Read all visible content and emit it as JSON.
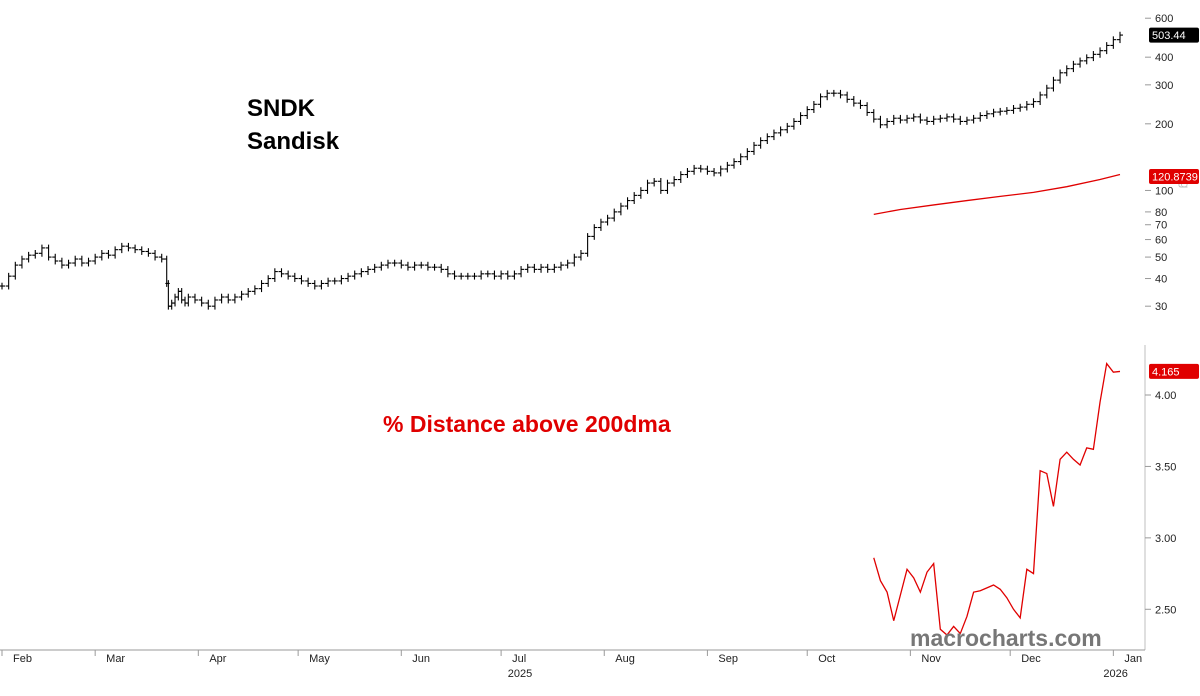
{
  "chart_data": [
    {
      "type": "ohlc",
      "title": "SNDK",
      "subtitle": "Sandisk",
      "y_scale": "log",
      "axis_unit_label": "Lg",
      "yticks": [
        30,
        40,
        50,
        60,
        70,
        80,
        100,
        200,
        300,
        400,
        600
      ],
      "ylim": [
        22,
        640
      ],
      "last_value_label": "503.44",
      "last_value_color": "#000000",
      "price_close": [
        [
          0,
          37
        ],
        [
          2,
          41
        ],
        [
          4,
          46
        ],
        [
          6,
          49
        ],
        [
          8,
          51
        ],
        [
          10,
          52
        ],
        [
          12,
          55
        ],
        [
          14,
          50
        ],
        [
          16,
          48
        ],
        [
          18,
          46
        ],
        [
          20,
          47
        ],
        [
          22,
          49
        ],
        [
          24,
          47
        ],
        [
          26,
          48
        ],
        [
          28,
          50
        ],
        [
          30,
          52
        ],
        [
          32,
          51
        ],
        [
          34,
          54
        ],
        [
          36,
          56
        ],
        [
          38,
          55
        ],
        [
          40,
          54
        ],
        [
          42,
          53
        ],
        [
          44,
          52
        ],
        [
          46,
          50
        ],
        [
          48,
          49
        ],
        [
          49.5,
          38
        ],
        [
          50,
          30
        ],
        [
          51,
          31
        ],
        [
          52,
          33
        ],
        [
          53,
          35
        ],
        [
          54,
          32
        ],
        [
          55,
          31
        ],
        [
          56,
          33
        ],
        [
          58,
          32
        ],
        [
          60,
          31
        ],
        [
          62,
          30
        ],
        [
          64,
          32
        ],
        [
          66,
          33
        ],
        [
          68,
          32
        ],
        [
          70,
          33
        ],
        [
          72,
          34
        ],
        [
          74,
          35
        ],
        [
          76,
          36
        ],
        [
          78,
          38
        ],
        [
          80,
          40
        ],
        [
          82,
          43
        ],
        [
          84,
          42
        ],
        [
          86,
          41
        ],
        [
          88,
          40
        ],
        [
          90,
          39
        ],
        [
          92,
          38
        ],
        [
          94,
          37
        ],
        [
          96,
          38
        ],
        [
          98,
          39
        ],
        [
          100,
          39
        ],
        [
          102,
          40
        ],
        [
          104,
          41
        ],
        [
          106,
          42
        ],
        [
          108,
          43
        ],
        [
          110,
          44
        ],
        [
          112,
          45
        ],
        [
          114,
          46
        ],
        [
          116,
          47
        ],
        [
          118,
          47
        ],
        [
          120,
          46
        ],
        [
          122,
          45
        ],
        [
          124,
          46
        ],
        [
          126,
          46
        ],
        [
          128,
          45
        ],
        [
          130,
          45
        ],
        [
          132,
          44
        ],
        [
          134,
          42
        ],
        [
          136,
          41
        ],
        [
          138,
          41
        ],
        [
          140,
          41
        ],
        [
          142,
          41
        ],
        [
          144,
          42
        ],
        [
          146,
          42
        ],
        [
          148,
          41
        ],
        [
          150,
          42
        ],
        [
          152,
          41
        ],
        [
          154,
          42
        ],
        [
          156,
          44
        ],
        [
          158,
          45
        ],
        [
          160,
          44
        ],
        [
          162,
          45
        ],
        [
          164,
          44
        ],
        [
          166,
          45
        ],
        [
          168,
          46
        ],
        [
          170,
          47
        ],
        [
          172,
          50
        ],
        [
          174,
          52
        ],
        [
          176,
          62
        ],
        [
          178,
          68
        ],
        [
          180,
          72
        ],
        [
          182,
          75
        ],
        [
          184,
          80
        ],
        [
          186,
          85
        ],
        [
          188,
          90
        ],
        [
          190,
          95
        ],
        [
          192,
          100
        ],
        [
          194,
          108
        ],
        [
          196,
          110
        ],
        [
          198,
          100
        ],
        [
          200,
          108
        ],
        [
          202,
          112
        ],
        [
          204,
          118
        ],
        [
          206,
          122
        ],
        [
          208,
          126
        ],
        [
          210,
          125
        ],
        [
          212,
          122
        ],
        [
          214,
          120
        ],
        [
          216,
          125
        ],
        [
          218,
          130
        ],
        [
          220,
          135
        ],
        [
          222,
          142
        ],
        [
          224,
          150
        ],
        [
          226,
          160
        ],
        [
          228,
          168
        ],
        [
          230,
          175
        ],
        [
          232,
          182
        ],
        [
          234,
          188
        ],
        [
          236,
          195
        ],
        [
          238,
          205
        ],
        [
          240,
          218
        ],
        [
          242,
          232
        ],
        [
          244,
          245
        ],
        [
          246,
          265
        ],
        [
          248,
          275
        ],
        [
          250,
          275
        ],
        [
          252,
          270
        ],
        [
          254,
          258
        ],
        [
          256,
          248
        ],
        [
          258,
          242
        ],
        [
          260,
          225
        ],
        [
          262,
          210
        ],
        [
          264,
          198
        ],
        [
          266,
          205
        ],
        [
          268,
          212
        ],
        [
          270,
          208
        ],
        [
          272,
          212
        ],
        [
          274,
          215
        ],
        [
          276,
          208
        ],
        [
          278,
          205
        ],
        [
          280,
          210
        ],
        [
          282,
          212
        ],
        [
          284,
          215
        ],
        [
          286,
          210
        ],
        [
          288,
          205
        ],
        [
          290,
          208
        ],
        [
          292,
          212
        ],
        [
          294,
          218
        ],
        [
          296,
          222
        ],
        [
          298,
          226
        ],
        [
          300,
          228
        ],
        [
          302,
          230
        ],
        [
          304,
          235
        ],
        [
          306,
          238
        ],
        [
          308,
          245
        ],
        [
          310,
          252
        ],
        [
          312,
          270
        ],
        [
          314,
          290
        ],
        [
          316,
          315
        ],
        [
          318,
          340
        ],
        [
          320,
          355
        ],
        [
          322,
          372
        ],
        [
          324,
          385
        ],
        [
          326,
          398
        ],
        [
          328,
          412
        ],
        [
          330,
          428
        ],
        [
          332,
          452
        ],
        [
          334,
          480
        ],
        [
          336,
          503.44
        ]
      ],
      "ma_line": [
        [
          262,
          78
        ],
        [
          270,
          82
        ],
        [
          280,
          86
        ],
        [
          290,
          90
        ],
        [
          300,
          94
        ],
        [
          310,
          98
        ],
        [
          320,
          104
        ],
        [
          330,
          112
        ],
        [
          336,
          118
        ]
      ],
      "ma_last_value_label": "120.8739",
      "ma_color": "#e00000"
    },
    {
      "type": "line",
      "title": "% Distance above 200dma",
      "yticks": [
        2.5,
        3.0,
        3.5,
        4.0
      ],
      "ytick_labels": [
        "2.50",
        "3.00",
        "3.50",
        "4.00"
      ],
      "ylim": [
        2.25,
        4.35
      ],
      "last_value_label": "4.165",
      "series": [
        {
          "color": "#e00000",
          "points": [
            [
              262,
              2.86
            ],
            [
              264,
              2.7
            ],
            [
              266,
              2.62
            ],
            [
              268,
              2.42
            ],
            [
              270,
              2.6
            ],
            [
              272,
              2.78
            ],
            [
              274,
              2.72
            ],
            [
              276,
              2.62
            ],
            [
              278,
              2.76
            ],
            [
              280,
              2.82
            ],
            [
              282,
              2.36
            ],
            [
              284,
              2.32
            ],
            [
              286,
              2.38
            ],
            [
              288,
              2.33
            ],
            [
              290,
              2.45
            ],
            [
              292,
              2.62
            ],
            [
              294,
              2.63
            ],
            [
              296,
              2.65
            ],
            [
              298,
              2.67
            ],
            [
              300,
              2.64
            ],
            [
              302,
              2.58
            ],
            [
              304,
              2.5
            ],
            [
              306,
              2.44
            ],
            [
              308,
              2.78
            ],
            [
              310,
              2.75
            ],
            [
              312,
              3.47
            ],
            [
              314,
              3.45
            ],
            [
              316,
              3.22
            ],
            [
              318,
              3.55
            ],
            [
              320,
              3.6
            ],
            [
              322,
              3.55
            ],
            [
              324,
              3.51
            ],
            [
              326,
              3.63
            ],
            [
              328,
              3.62
            ],
            [
              330,
              3.95
            ],
            [
              332,
              4.22
            ],
            [
              334,
              4.16
            ],
            [
              336,
              4.165
            ]
          ]
        }
      ]
    }
  ],
  "x_axis": {
    "months": [
      {
        "label": "Feb",
        "day": 0
      },
      {
        "label": "Mar",
        "day": 28
      },
      {
        "label": "Apr",
        "day": 59
      },
      {
        "label": "May",
        "day": 89
      },
      {
        "label": "Jun",
        "day": 120
      },
      {
        "label": "Jul",
        "day": 150
      },
      {
        "label": "Aug",
        "day": 181
      },
      {
        "label": "Sep",
        "day": 212
      },
      {
        "label": "Oct",
        "day": 242
      },
      {
        "label": "Nov",
        "day": 273
      },
      {
        "label": "Dec",
        "day": 303
      },
      {
        "label": "Jan",
        "day": 334
      }
    ],
    "years": [
      {
        "label": "2025",
        "day": 155
      },
      {
        "label": "2026",
        "day": 334
      }
    ]
  },
  "watermark": "macrocharts.com"
}
